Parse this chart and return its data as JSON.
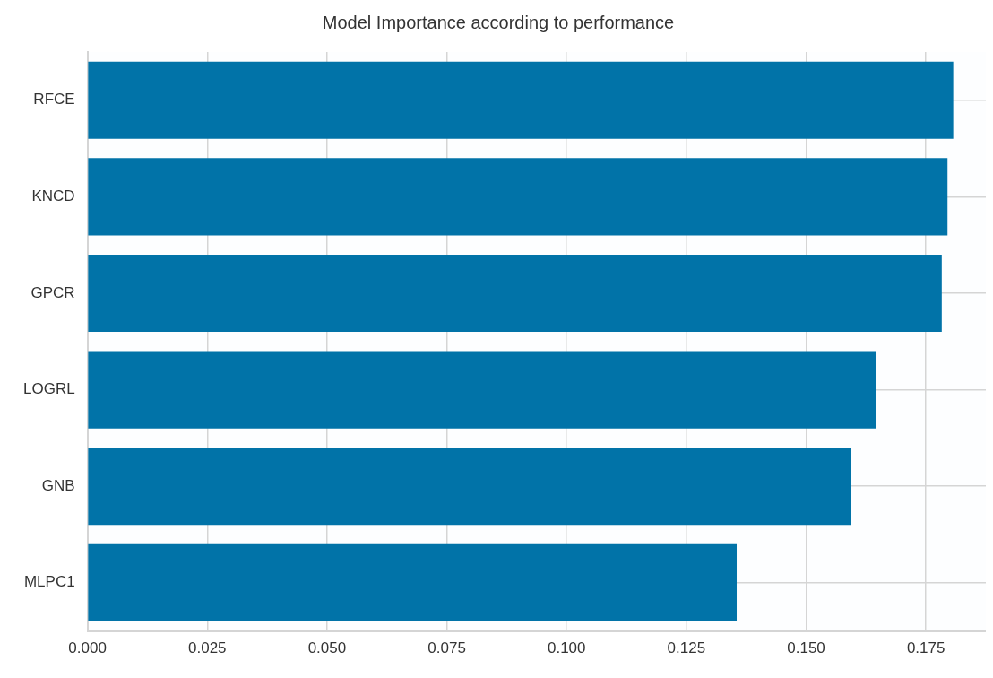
{
  "chart_data": {
    "type": "bar",
    "orientation": "horizontal",
    "title": "Model Importance according to performance",
    "categories": [
      "RFCE",
      "KNCD",
      "GPCR",
      "LOGRL",
      "GNB",
      "MLPC1"
    ],
    "values": [
      0.1807,
      0.1795,
      0.1783,
      0.1646,
      0.1594,
      0.1355
    ],
    "color": "#0173a8",
    "xlim": [
      0,
      0.1875
    ],
    "xticks": [
      {
        "value": 0,
        "label": "0.000"
      },
      {
        "value": 0.025,
        "label": "0.025"
      },
      {
        "value": 0.05,
        "label": "0.050"
      },
      {
        "value": 0.075,
        "label": "0.075"
      },
      {
        "value": 0.1,
        "label": "0.100"
      },
      {
        "value": 0.125,
        "label": "0.125"
      },
      {
        "value": 0.15,
        "label": "0.150"
      },
      {
        "value": 0.175,
        "label": "0.175"
      }
    ],
    "grid": true,
    "legend": false
  }
}
